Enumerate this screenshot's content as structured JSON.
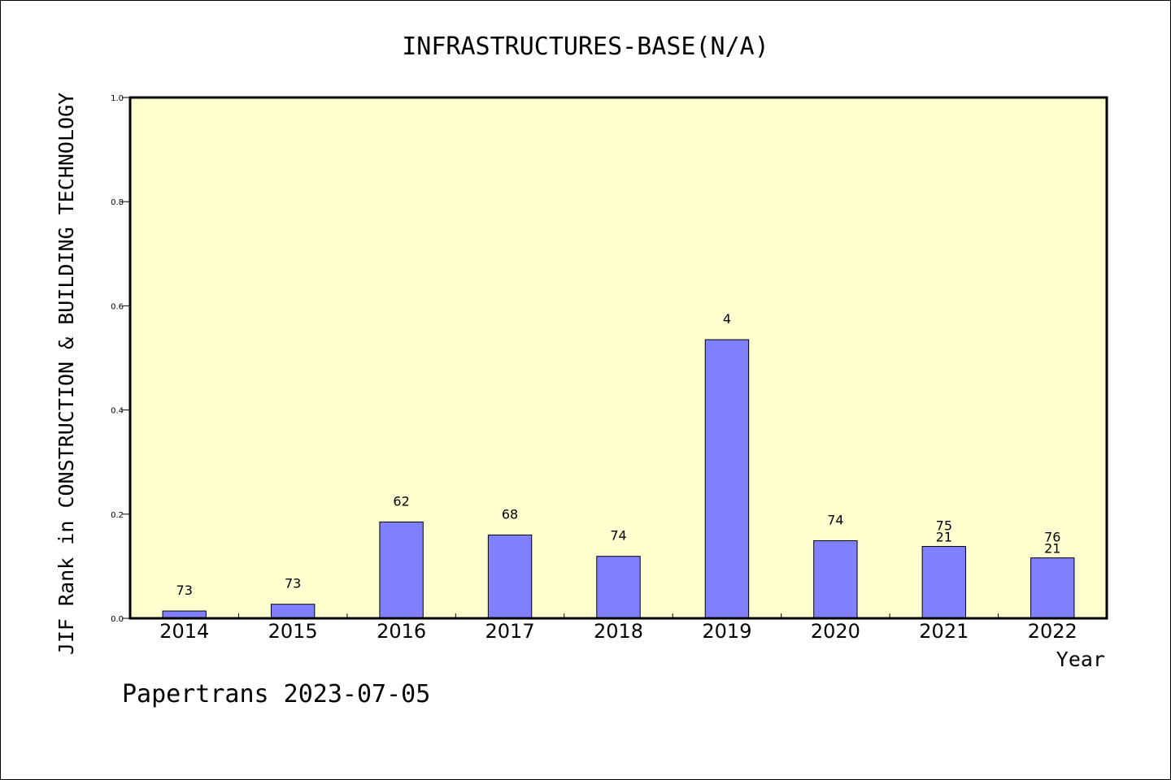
{
  "chart_data": {
    "type": "bar",
    "title": "INFRASTRUCTURES-BASE(N/A)",
    "xlabel": "Year",
    "ylabel": "JIF Rank in CONSTRUCTION & BUILDING TECHNOLOGY",
    "categories": [
      "2014",
      "2015",
      "2016",
      "2017",
      "2018",
      "2019",
      "2020",
      "2021",
      "2022"
    ],
    "values": [
      0.014,
      0.027,
      0.185,
      0.16,
      0.119,
      0.535,
      0.149,
      0.138,
      0.116
    ],
    "data_labels": [
      [
        "73"
      ],
      [
        "73"
      ],
      [
        "62"
      ],
      [
        "68"
      ],
      [
        "74"
      ],
      [
        "4"
      ],
      [
        "74"
      ],
      [
        "75",
        "21"
      ],
      [
        "76",
        "21"
      ]
    ],
    "ylim": [
      0,
      1.0
    ],
    "yticks": [
      "0.0",
      "0.2",
      "0.4",
      "0.6",
      "0.8",
      "1.0"
    ],
    "grid": false,
    "legend": "none",
    "colors": {
      "bar": "#8080ff",
      "plot_background": "#ffffd0",
      "page_background": "#ffffff"
    }
  },
  "footer": "Papertrans 2023-07-05"
}
